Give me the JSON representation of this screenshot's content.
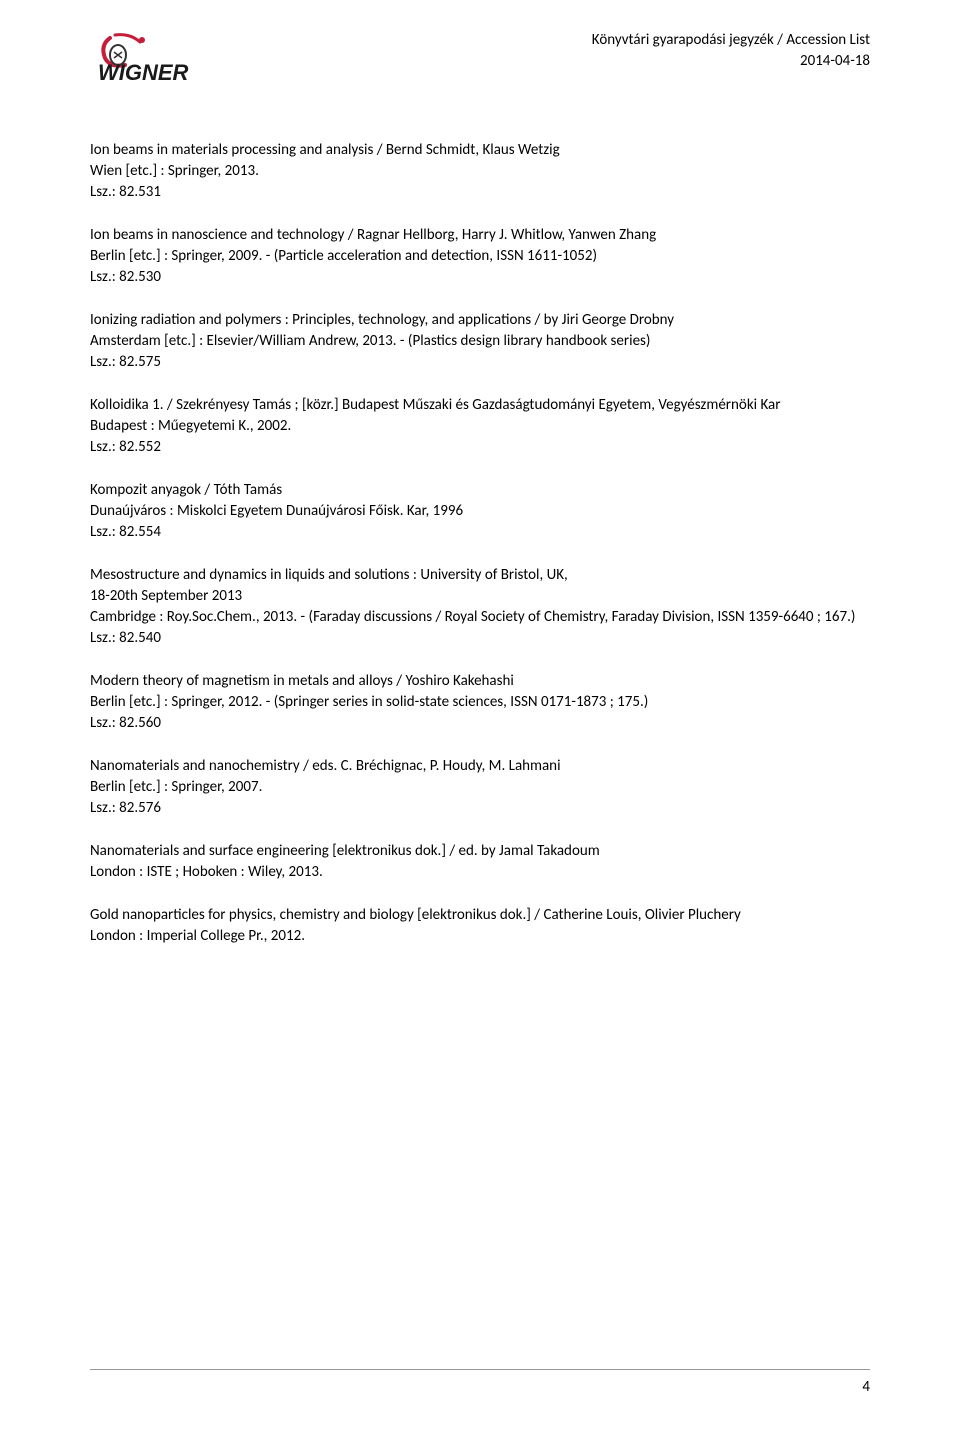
{
  "header": {
    "title_line1": "Könyvtári gyarapodási jegyzék / Accession List",
    "title_line2": "2014-04-18"
  },
  "logo": {
    "text": "WIGNER",
    "colors": {
      "text": "#1a1a1a",
      "accent": "#c41e3a"
    }
  },
  "entries": [
    {
      "lines": [
        "Ion beams in materials processing and analysis / Bernd Schmidt, Klaus Wetzig",
        "Wien [etc.] : Springer, 2013.",
        "Lsz.: 82.531"
      ]
    },
    {
      "lines": [
        "Ion beams in nanoscience and technology / Ragnar Hellborg, Harry J. Whitlow, Yanwen Zhang",
        "Berlin [etc.] : Springer, 2009. - (Particle acceleration and detection, ISSN 1611-1052)",
        "Lsz.: 82.530"
      ]
    },
    {
      "lines": [
        "Ionizing radiation and polymers : Principles, technology, and applications / by Jiri George Drobny",
        "Amsterdam [etc.] : Elsevier/William Andrew, 2013. - (Plastics design library handbook series)",
        "Lsz.: 82.575"
      ]
    },
    {
      "lines": [
        "Kolloidika 1. / Szekrényesy Tamás ; [közr.] Budapest Műszaki és Gazdaságtudományi Egyetem, Vegyészmérnöki Kar",
        "Budapest : Műegyetemi K., 2002.",
        "Lsz.: 82.552"
      ]
    },
    {
      "lines": [
        "Kompozit anyagok / Tóth Tamás",
        "Dunaújváros : Miskolci Egyetem Dunaújvárosi Főisk. Kar, 1996",
        "Lsz.: 82.554"
      ]
    },
    {
      "lines": [
        "Mesostructure and dynamics in liquids and solutions : University of Bristol, UK,",
        "18-20th September 2013",
        "Cambridge : Roy.Soc.Chem., 2013. - (Faraday discussions / Royal Society of Chemistry, Faraday Division, ISSN 1359-6640 ; 167.)",
        "Lsz.: 82.540"
      ]
    },
    {
      "lines": [
        "Modern theory of magnetism in metals and alloys / Yoshiro Kakehashi",
        "Berlin [etc.] : Springer, 2012. - (Springer series in solid-state sciences, ISSN 0171-1873 ; 175.)",
        "Lsz.: 82.560"
      ]
    },
    {
      "lines": [
        "Nanomaterials and nanochemistry / eds. C. Bréchignac, P. Houdy, M. Lahmani",
        "Berlin [etc.] : Springer, 2007.",
        "Lsz.: 82.576"
      ]
    },
    {
      "lines": [
        "Nanomaterials and surface engineering [elektronikus dok.] / ed. by Jamal Takadoum",
        "London : ISTE ; Hoboken : Wiley, 2013."
      ]
    },
    {
      "lines": [
        "Gold nanoparticles for physics, chemistry and biology [elektronikus dok.] / Catherine Louis, Olivier Pluchery",
        "London : Imperial College Pr., 2012."
      ]
    }
  ],
  "footer": {
    "page_number": "4"
  }
}
